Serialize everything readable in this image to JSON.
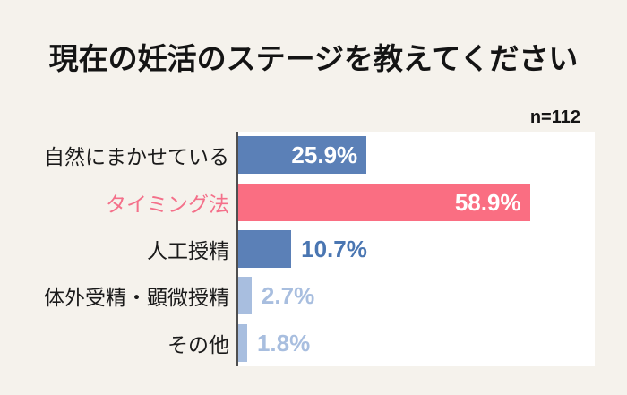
{
  "title": "現在の妊活のステージを教えてください",
  "sample_label": "n=112",
  "colors": {
    "background": "#F5F2EC",
    "plot_background": "#FFFFFF",
    "axis_line": "#4F4F4F",
    "bar_blue": "#5B80B7",
    "bar_pink": "#FA6E82",
    "bar_light_blue": "#A8BEDF",
    "value_inside_text": "#FFFFFF",
    "value_blue_text": "#4A76B2",
    "value_light_blue_text": "#A8BEDF",
    "category_label_text": "#1A1A1A",
    "category_label_highlight": "#F4708A"
  },
  "chart_data": {
    "type": "bar",
    "orientation": "horizontal",
    "title": "現在の妊活のステージを教えてください",
    "annotation": "n=112",
    "categories": [
      "自然にまかせている",
      "タイミング法",
      "人工授精",
      "体外受精・顕微授精",
      "その他"
    ],
    "values": [
      25.9,
      58.9,
      10.7,
      2.7,
      1.8
    ],
    "value_labels": [
      "25.9%",
      "58.9%",
      "10.7%",
      "2.7%",
      "1.8%"
    ],
    "xlabel": "",
    "ylabel": "",
    "xlim": [
      0,
      72
    ],
    "grid": false,
    "legend": false,
    "bars": [
      {
        "label": "自然にまかせている",
        "value": 25.9,
        "display": "25.9%",
        "bar_color": "#5B80B7",
        "label_color": "#1A1A1A",
        "value_color": "#FFFFFF",
        "value_placement": "inside"
      },
      {
        "label": "タイミング法",
        "value": 58.9,
        "display": "58.9%",
        "bar_color": "#FA6E82",
        "label_color": "#F4708A",
        "value_color": "#FFFFFF",
        "value_placement": "inside"
      },
      {
        "label": "人工授精",
        "value": 10.7,
        "display": "10.7%",
        "bar_color": "#5B80B7",
        "label_color": "#1A1A1A",
        "value_color": "#4A76B2",
        "value_placement": "outside"
      },
      {
        "label": "体外受精・顕微授精",
        "value": 2.7,
        "display": "2.7%",
        "bar_color": "#A8BEDF",
        "label_color": "#1A1A1A",
        "value_color": "#A8BEDF",
        "value_placement": "outside"
      },
      {
        "label": "その他",
        "value": 1.8,
        "display": "1.8%",
        "bar_color": "#A8BEDF",
        "label_color": "#1A1A1A",
        "value_color": "#A8BEDF",
        "value_placement": "outside"
      }
    ]
  }
}
